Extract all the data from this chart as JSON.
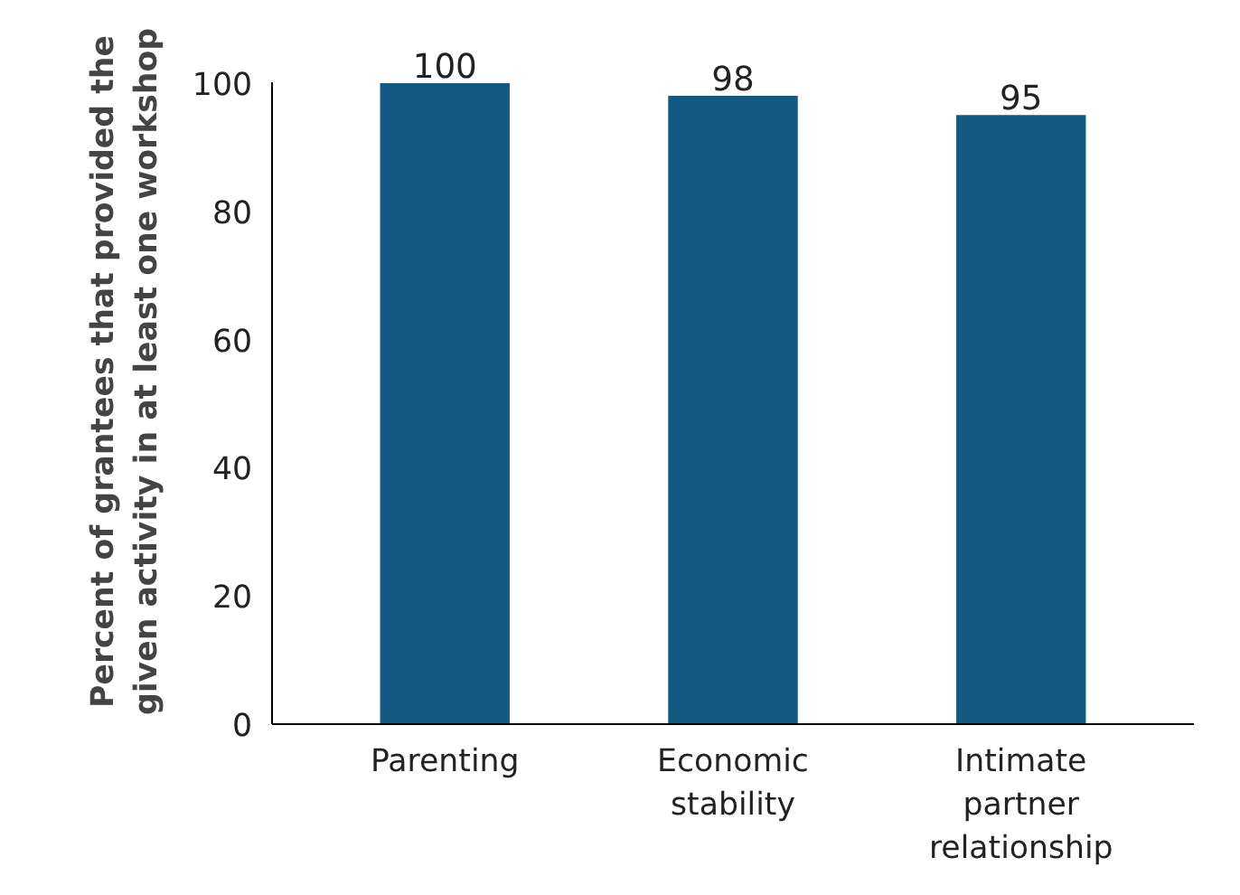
{
  "chart_data": {
    "type": "bar",
    "ylabel": "Percent of grantees that provided the\ngiven activity in at least one workshop",
    "categories": [
      "Parenting",
      "Economic stability",
      "Intimate partner relationship"
    ],
    "values": [
      100,
      98,
      95
    ],
    "color": "#135a82",
    "ylim": [
      0,
      100
    ],
    "yticks": [
      0,
      20,
      40,
      60,
      80,
      100
    ],
    "grid": false,
    "data_labels": true
  }
}
